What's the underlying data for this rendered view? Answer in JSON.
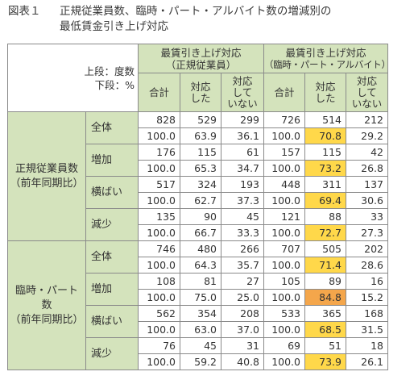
{
  "title": {
    "label": "図表１",
    "line1": "正規従業員数、臨時・パート・アルバイト数の増減別の",
    "line2": "最低賃金引き上げ対応"
  },
  "unit": {
    "upper": "上段：度数",
    "lower": "下段：%"
  },
  "groups": [
    {
      "line1": "最賃引き上げ対応",
      "line2": "（正規従業員）"
    },
    {
      "line1": "最賃引き上げ対応",
      "line2": "（臨時・パート・アルバイト）"
    }
  ],
  "headers": [
    {
      "line1": "合計",
      "line2": "",
      "line3": ""
    },
    {
      "line1": "対応",
      "line2": "した",
      "line3": ""
    },
    {
      "line1": "対応",
      "line2": "して",
      "line3": "いない"
    },
    {
      "line1": "合計",
      "line2": "",
      "line3": ""
    },
    {
      "line1": "対応",
      "line2": "した",
      "line3": ""
    },
    {
      "line1": "対応",
      "line2": "して",
      "line3": "いない"
    }
  ],
  "sections": [
    {
      "line1": "正規従業員数",
      "line2": "（前年同期比）",
      "line3": "",
      "rows": [
        {
          "label": "全体",
          "counts": [
            "828",
            "529",
            "299",
            "726",
            "514",
            "212"
          ],
          "pcts": [
            "100.0",
            "63.9",
            "36.1",
            "100.0",
            "70.8",
            "29.2"
          ]
        },
        {
          "label": "増加",
          "counts": [
            "176",
            "115",
            "61",
            "157",
            "115",
            "42"
          ],
          "pcts": [
            "100.0",
            "65.3",
            "34.7",
            "100.0",
            "73.2",
            "26.8"
          ]
        },
        {
          "label": "横ばい",
          "counts": [
            "517",
            "324",
            "193",
            "448",
            "311",
            "137"
          ],
          "pcts": [
            "100.0",
            "62.7",
            "37.3",
            "100.0",
            "69.4",
            "30.6"
          ]
        },
        {
          "label": "減少",
          "counts": [
            "135",
            "90",
            "45",
            "121",
            "88",
            "33"
          ],
          "pcts": [
            "100.0",
            "66.7",
            "33.3",
            "100.0",
            "72.7",
            "27.3"
          ]
        }
      ]
    },
    {
      "line1": "臨時・パート",
      "line2": "数",
      "line3": "（前年同期比）",
      "rows": [
        {
          "label": "全体",
          "counts": [
            "746",
            "480",
            "266",
            "707",
            "505",
            "202"
          ],
          "pcts": [
            "100.0",
            "64.3",
            "35.7",
            "100.0",
            "71.4",
            "28.6"
          ]
        },
        {
          "label": "増加",
          "counts": [
            "108",
            "81",
            "27",
            "105",
            "89",
            "16"
          ],
          "pcts": [
            "100.0",
            "75.0",
            "25.0",
            "100.0",
            "84.8",
            "15.2"
          ]
        },
        {
          "label": "横ばい",
          "counts": [
            "562",
            "354",
            "208",
            "533",
            "365",
            "168"
          ],
          "pcts": [
            "100.0",
            "63.0",
            "37.0",
            "100.0",
            "68.5",
            "31.5"
          ]
        },
        {
          "label": "減少",
          "counts": [
            "76",
            "45",
            "31",
            "69",
            "51",
            "18"
          ],
          "pcts": [
            "100.0",
            "59.2",
            "40.8",
            "100.0",
            "73.9",
            "26.1"
          ]
        }
      ]
    }
  ],
  "colors": {
    "header_green": "#d4e3bc",
    "highlight_yellow": "#ffd84a",
    "highlight_orange": "#f4a64b"
  }
}
